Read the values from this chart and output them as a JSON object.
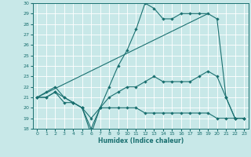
{
  "xlabel": "Humidex (Indice chaleur)",
  "xlim": [
    -0.5,
    23.5
  ],
  "ylim": [
    18,
    30
  ],
  "yticks": [
    18,
    19,
    20,
    21,
    22,
    23,
    24,
    25,
    26,
    27,
    28,
    29,
    30
  ],
  "xticks": [
    0,
    1,
    2,
    3,
    4,
    5,
    6,
    7,
    8,
    9,
    10,
    11,
    12,
    13,
    14,
    15,
    16,
    17,
    18,
    19,
    20,
    21,
    22,
    23
  ],
  "bg_color": "#c8e8e8",
  "line_color": "#1a7070",
  "grid_color": "#ffffff",
  "lines": [
    {
      "x": [
        0,
        1,
        2,
        3,
        4,
        5,
        6,
        7,
        8,
        9,
        10,
        11,
        12,
        13,
        14,
        15,
        16,
        17,
        18,
        19,
        20,
        21,
        22,
        23
      ],
      "y": [
        21,
        21,
        21.5,
        21,
        20.5,
        20,
        18,
        20,
        20,
        20,
        20,
        20,
        19.5,
        19.5,
        19.5,
        19.5,
        19.5,
        19.5,
        19.5,
        19.5,
        19,
        19,
        19,
        19
      ],
      "has_marker": true
    },
    {
      "x": [
        0,
        1,
        2,
        3,
        4,
        5,
        6,
        7,
        8,
        9,
        10,
        11,
        12,
        13,
        14,
        15,
        16,
        17,
        18,
        19,
        20,
        21,
        22,
        23
      ],
      "y": [
        21,
        21,
        21.5,
        20.5,
        20.5,
        20,
        19,
        20,
        21,
        21.5,
        22,
        22,
        22.5,
        23,
        22.5,
        22.5,
        22.5,
        22.5,
        23,
        23.5,
        23,
        21,
        19,
        19
      ],
      "has_marker": true
    },
    {
      "x": [
        0,
        1,
        2,
        3,
        4,
        5,
        6,
        7,
        8,
        9,
        10,
        11,
        12,
        13,
        14,
        15,
        16,
        17,
        18,
        19,
        20,
        21,
        22,
        23
      ],
      "y": [
        21,
        21.5,
        22,
        21,
        20.5,
        20,
        17.5,
        20,
        22,
        24,
        25.5,
        27.5,
        30,
        29.5,
        28.5,
        28.5,
        29,
        29,
        29,
        29,
        28.5,
        21,
        19,
        19
      ],
      "has_marker": true
    },
    {
      "x": [
        0,
        19
      ],
      "y": [
        21,
        29
      ],
      "has_marker": false
    }
  ]
}
